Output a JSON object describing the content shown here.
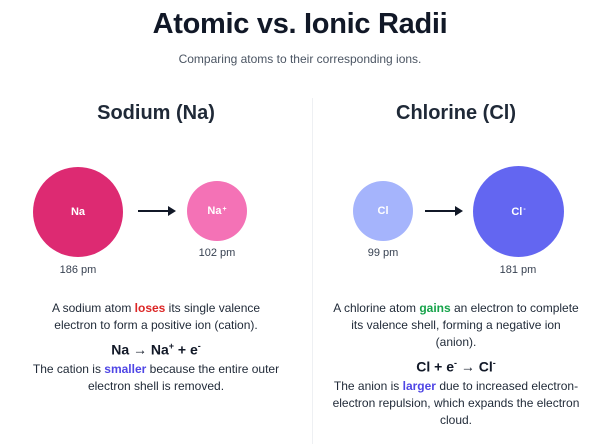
{
  "header": {
    "title": "Atomic vs. Ionic Radii",
    "subtitle": "Comparing atoms to their corresponding ions."
  },
  "colors": {
    "sodium_atom": "#dd2a72",
    "sodium_ion": "#f472b6",
    "chlorine_atom": "#a5b4fc",
    "chlorine_ion": "#6366f1",
    "loses": "#dc2626",
    "gains": "#16a34a",
    "smaller_larger": "#4f46e5"
  },
  "sodium": {
    "heading": "Sodium (Na)",
    "atom": {
      "symbol": "Na",
      "charge": "",
      "radius": "186 pm"
    },
    "ion": {
      "symbol": "Na",
      "charge": "+",
      "radius": "102 pm"
    },
    "desc1_pre": "A sodium atom ",
    "desc1_keyword": "loses",
    "desc1_post": " its single valence electron to form a positive ion (cation).",
    "equation_a": "Na → Na",
    "equation_a_sup": "+",
    "equation_b": " + e",
    "equation_b_sup": "-",
    "desc2_pre": "The cation is ",
    "desc2_keyword": "smaller",
    "desc2_post": " because the entire outer electron shell is removed."
  },
  "chlorine": {
    "heading": "Chlorine (Cl)",
    "atom": {
      "symbol": "Cl",
      "charge": "",
      "radius": "99 pm"
    },
    "ion": {
      "symbol": "Cl",
      "charge": "-",
      "radius": "181 pm"
    },
    "desc1_pre": "A chlorine atom ",
    "desc1_keyword": "gains",
    "desc1_post": " an electron to complete its valence shell, forming a negative ion (anion).",
    "equation_a": "Cl + e",
    "equation_a_sup": "-",
    "equation_b": " → Cl",
    "equation_b_sup": "-",
    "desc2_pre": "The anion is ",
    "desc2_keyword": "larger",
    "desc2_post": " due to increased electron-electron repulsion, which expands the electron cloud."
  }
}
